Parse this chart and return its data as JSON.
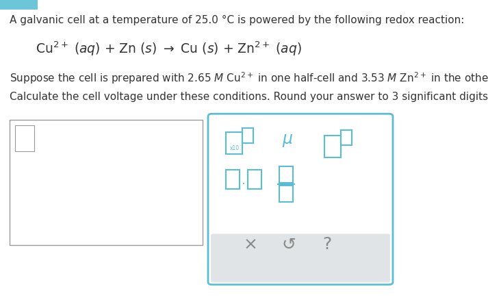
{
  "background_color": "#ffffff",
  "top_blue_color": "#6cc5d8",
  "text_color": "#333333",
  "symbol_color": "#5bbcd6",
  "gray_color": "#e0e4e6",
  "border_color": "#999999",
  "panel_border_color": "#5bbcd6",
  "bottom_icon_color": "#888888",
  "figsize": [
    7.13,
    4.47
  ],
  "dpi": 100,
  "line1": "A galvanic cell at a temperature of 25.0 °C is powered by the following redox reaction:",
  "line4": "Calculate the cell voltage under these conditions. Round your answer to 3 significant digits."
}
